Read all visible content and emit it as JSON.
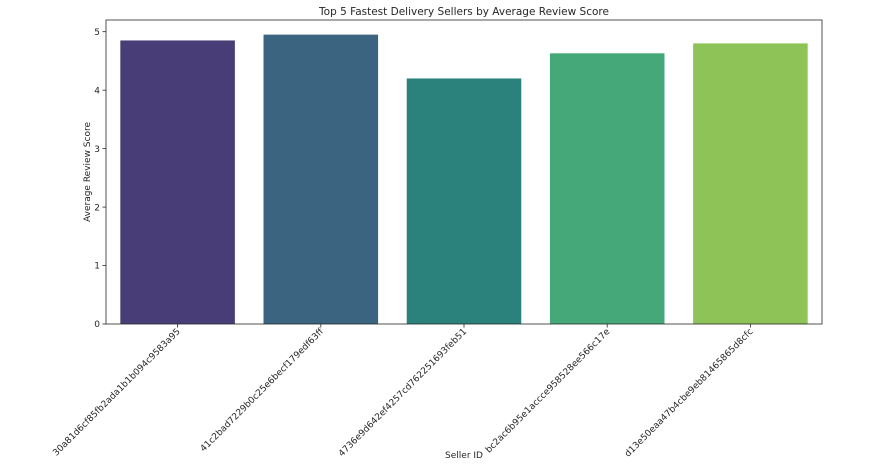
{
  "chart_data": {
    "type": "bar",
    "title": "Top 5 Fastest Delivery Sellers by Average Review Score",
    "xlabel": "Seller ID",
    "ylabel": "Average Review Score",
    "categories": [
      "30a81d6cf85fb2ada1b1b094c9583a95",
      "41c2bad7229b0c25e6becf179edf63ff",
      "4736e9d642ef4257cd762251693feb51",
      "bc2ac6b95e1accce958528ee566c17e",
      "d13e50eaa47b4cbe9eb81465865d8cfc"
    ],
    "values": [
      4.85,
      4.95,
      4.2,
      4.63,
      4.8
    ],
    "colors": [
      "#483d77",
      "#3a6480",
      "#2b827c",
      "#44a878",
      "#8ec457"
    ],
    "ylim": [
      0,
      5.2
    ],
    "yticks": [
      0,
      1,
      2,
      3,
      4,
      5
    ],
    "grid": false,
    "legend": "none"
  }
}
